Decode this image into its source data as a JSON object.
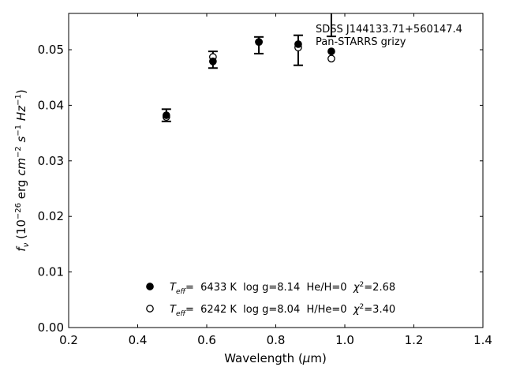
{
  "chart_data": {
    "type": "scatter",
    "title": "",
    "xlabel": "Wavelength (μm)",
    "ylabel": "f_ν (10^-26 erg cm^-2 s^-1 Hz^-1)",
    "xlim": [
      0.2,
      1.4
    ],
    "ylim": [
      0.0,
      0.0565
    ],
    "xticks": [
      "0.2",
      "0.4",
      "0.6",
      "0.8",
      "1.0",
      "1.2",
      "1.4"
    ],
    "yticks": [
      "0.00",
      "0.01",
      "0.02",
      "0.03",
      "0.04",
      "0.05"
    ],
    "grid": false,
    "annotation": [
      "SDSS J144133.71+560147.4",
      "Pan-STARRS grizy"
    ],
    "observed": {
      "x": [
        0.483,
        0.618,
        0.751,
        0.865,
        0.961
      ],
      "y": [
        0.0382,
        0.0482,
        0.0508,
        0.0499,
        0.06
      ],
      "yerr": [
        0.0011,
        0.0015,
        0.0015,
        0.0027,
        0.0076
      ]
    },
    "series": [
      {
        "name": "Teff= 6433 K  log g=8.14  He/H=0  χ²=2.68",
        "marker": "filled-circle",
        "x": [
          0.483,
          0.618,
          0.751,
          0.865,
          0.961
        ],
        "y": [
          0.0382,
          0.0479,
          0.0514,
          0.051,
          0.0497
        ]
      },
      {
        "name": "Teff= 6242 K  log g=8.04  H/He=0  χ²=3.40",
        "marker": "open-circle",
        "x": [
          0.483,
          0.618,
          0.751,
          0.865,
          0.961
        ],
        "y": [
          0.0379,
          0.0487,
          0.0514,
          0.0504,
          0.0484
        ]
      }
    ],
    "legend": {
      "placement": "bottom-center",
      "entries": [
        {
          "teff": "6433 K",
          "logg": "log g=8.14",
          "comp": "He/H=0",
          "chi2": "=2.68"
        },
        {
          "teff": "6242 K",
          "logg": "log g=8.04",
          "comp": "H/He=0",
          "chi2": "=3.40"
        }
      ]
    }
  }
}
